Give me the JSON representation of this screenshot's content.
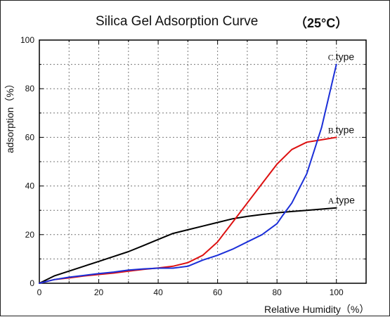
{
  "chart_data": {
    "type": "line",
    "title": "Silica Gel Adsorption Curve",
    "title_note": "（25°C）",
    "xlabel": "Relative Humidity（%）",
    "ylabel": "adsorption（%）",
    "xlim": [
      0,
      110
    ],
    "ylim": [
      0,
      100
    ],
    "xticks": [
      0,
      20,
      40,
      60,
      80,
      100
    ],
    "yticks": [
      0,
      20,
      40,
      60,
      80,
      100
    ],
    "grid": true,
    "series": [
      {
        "name": "A.type",
        "label_prefix": "A.",
        "label_suffix": "type",
        "color": "#000000",
        "x": [
          0,
          5,
          10,
          15,
          20,
          25,
          30,
          35,
          40,
          45,
          50,
          55,
          60,
          65,
          70,
          75,
          80,
          85,
          90,
          95,
          100
        ],
        "y": [
          0,
          3,
          5,
          7,
          9,
          11,
          13,
          15.5,
          18,
          20.5,
          22,
          23.5,
          25,
          26.5,
          27.5,
          28.3,
          29,
          29.5,
          30,
          30.5,
          31
        ]
      },
      {
        "name": "B.type",
        "label_prefix": "B.",
        "label_suffix": "type",
        "color": "#dd1111",
        "x": [
          0,
          5,
          10,
          15,
          20,
          25,
          30,
          35,
          40,
          45,
          50,
          55,
          60,
          65,
          70,
          75,
          80,
          85,
          90,
          95,
          100
        ],
        "y": [
          0,
          1.5,
          2.2,
          3,
          3.6,
          4.2,
          5,
          5.7,
          6.3,
          7,
          8.5,
          11.5,
          17,
          25,
          33,
          41,
          49,
          55,
          58,
          59,
          60
        ]
      },
      {
        "name": "C.type",
        "label_prefix": "C.",
        "label_suffix": "type",
        "color": "#1b2fd8",
        "x": [
          0,
          5,
          10,
          15,
          20,
          25,
          30,
          35,
          40,
          45,
          50,
          55,
          60,
          65,
          70,
          75,
          80,
          82,
          85,
          90,
          95,
          100
        ],
        "y": [
          0,
          1.5,
          2.5,
          3.2,
          4,
          4.6,
          5.4,
          5.9,
          6.2,
          6.2,
          7,
          9.5,
          11.5,
          14,
          17,
          20,
          24.5,
          28,
          33,
          45,
          64,
          90
        ]
      }
    ]
  }
}
